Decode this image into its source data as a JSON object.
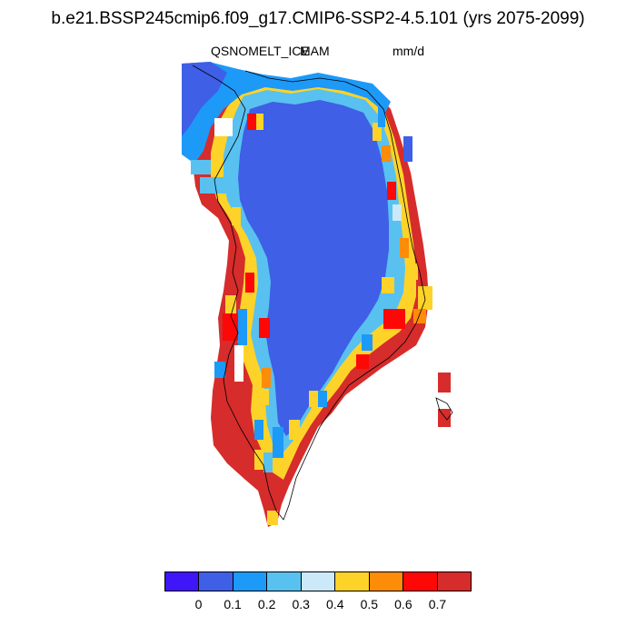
{
  "title": "b.e21.BSSP245cmip6.f09_g17.CMIP6-SSP2-4.5.101 (yrs 2075-2099)",
  "variable": "QSNOMELT_ICE",
  "season": "MAM",
  "units": "mm/d",
  "colorbar": {
    "colors": [
      "#3f16f7",
      "#3e5fe6",
      "#1d99f8",
      "#58c1f0",
      "#cbe9f8",
      "#fed329",
      "#fd8c08",
      "#fe0707",
      "#d62c2b"
    ],
    "tick_labels": [
      "0",
      "0.1",
      "0.2",
      "0.3",
      "0.4",
      "0.5",
      "0.6",
      "0.7"
    ]
  },
  "map_legend": {
    "ice_sheet_interior": "0.1",
    "margins": "0.7"
  }
}
